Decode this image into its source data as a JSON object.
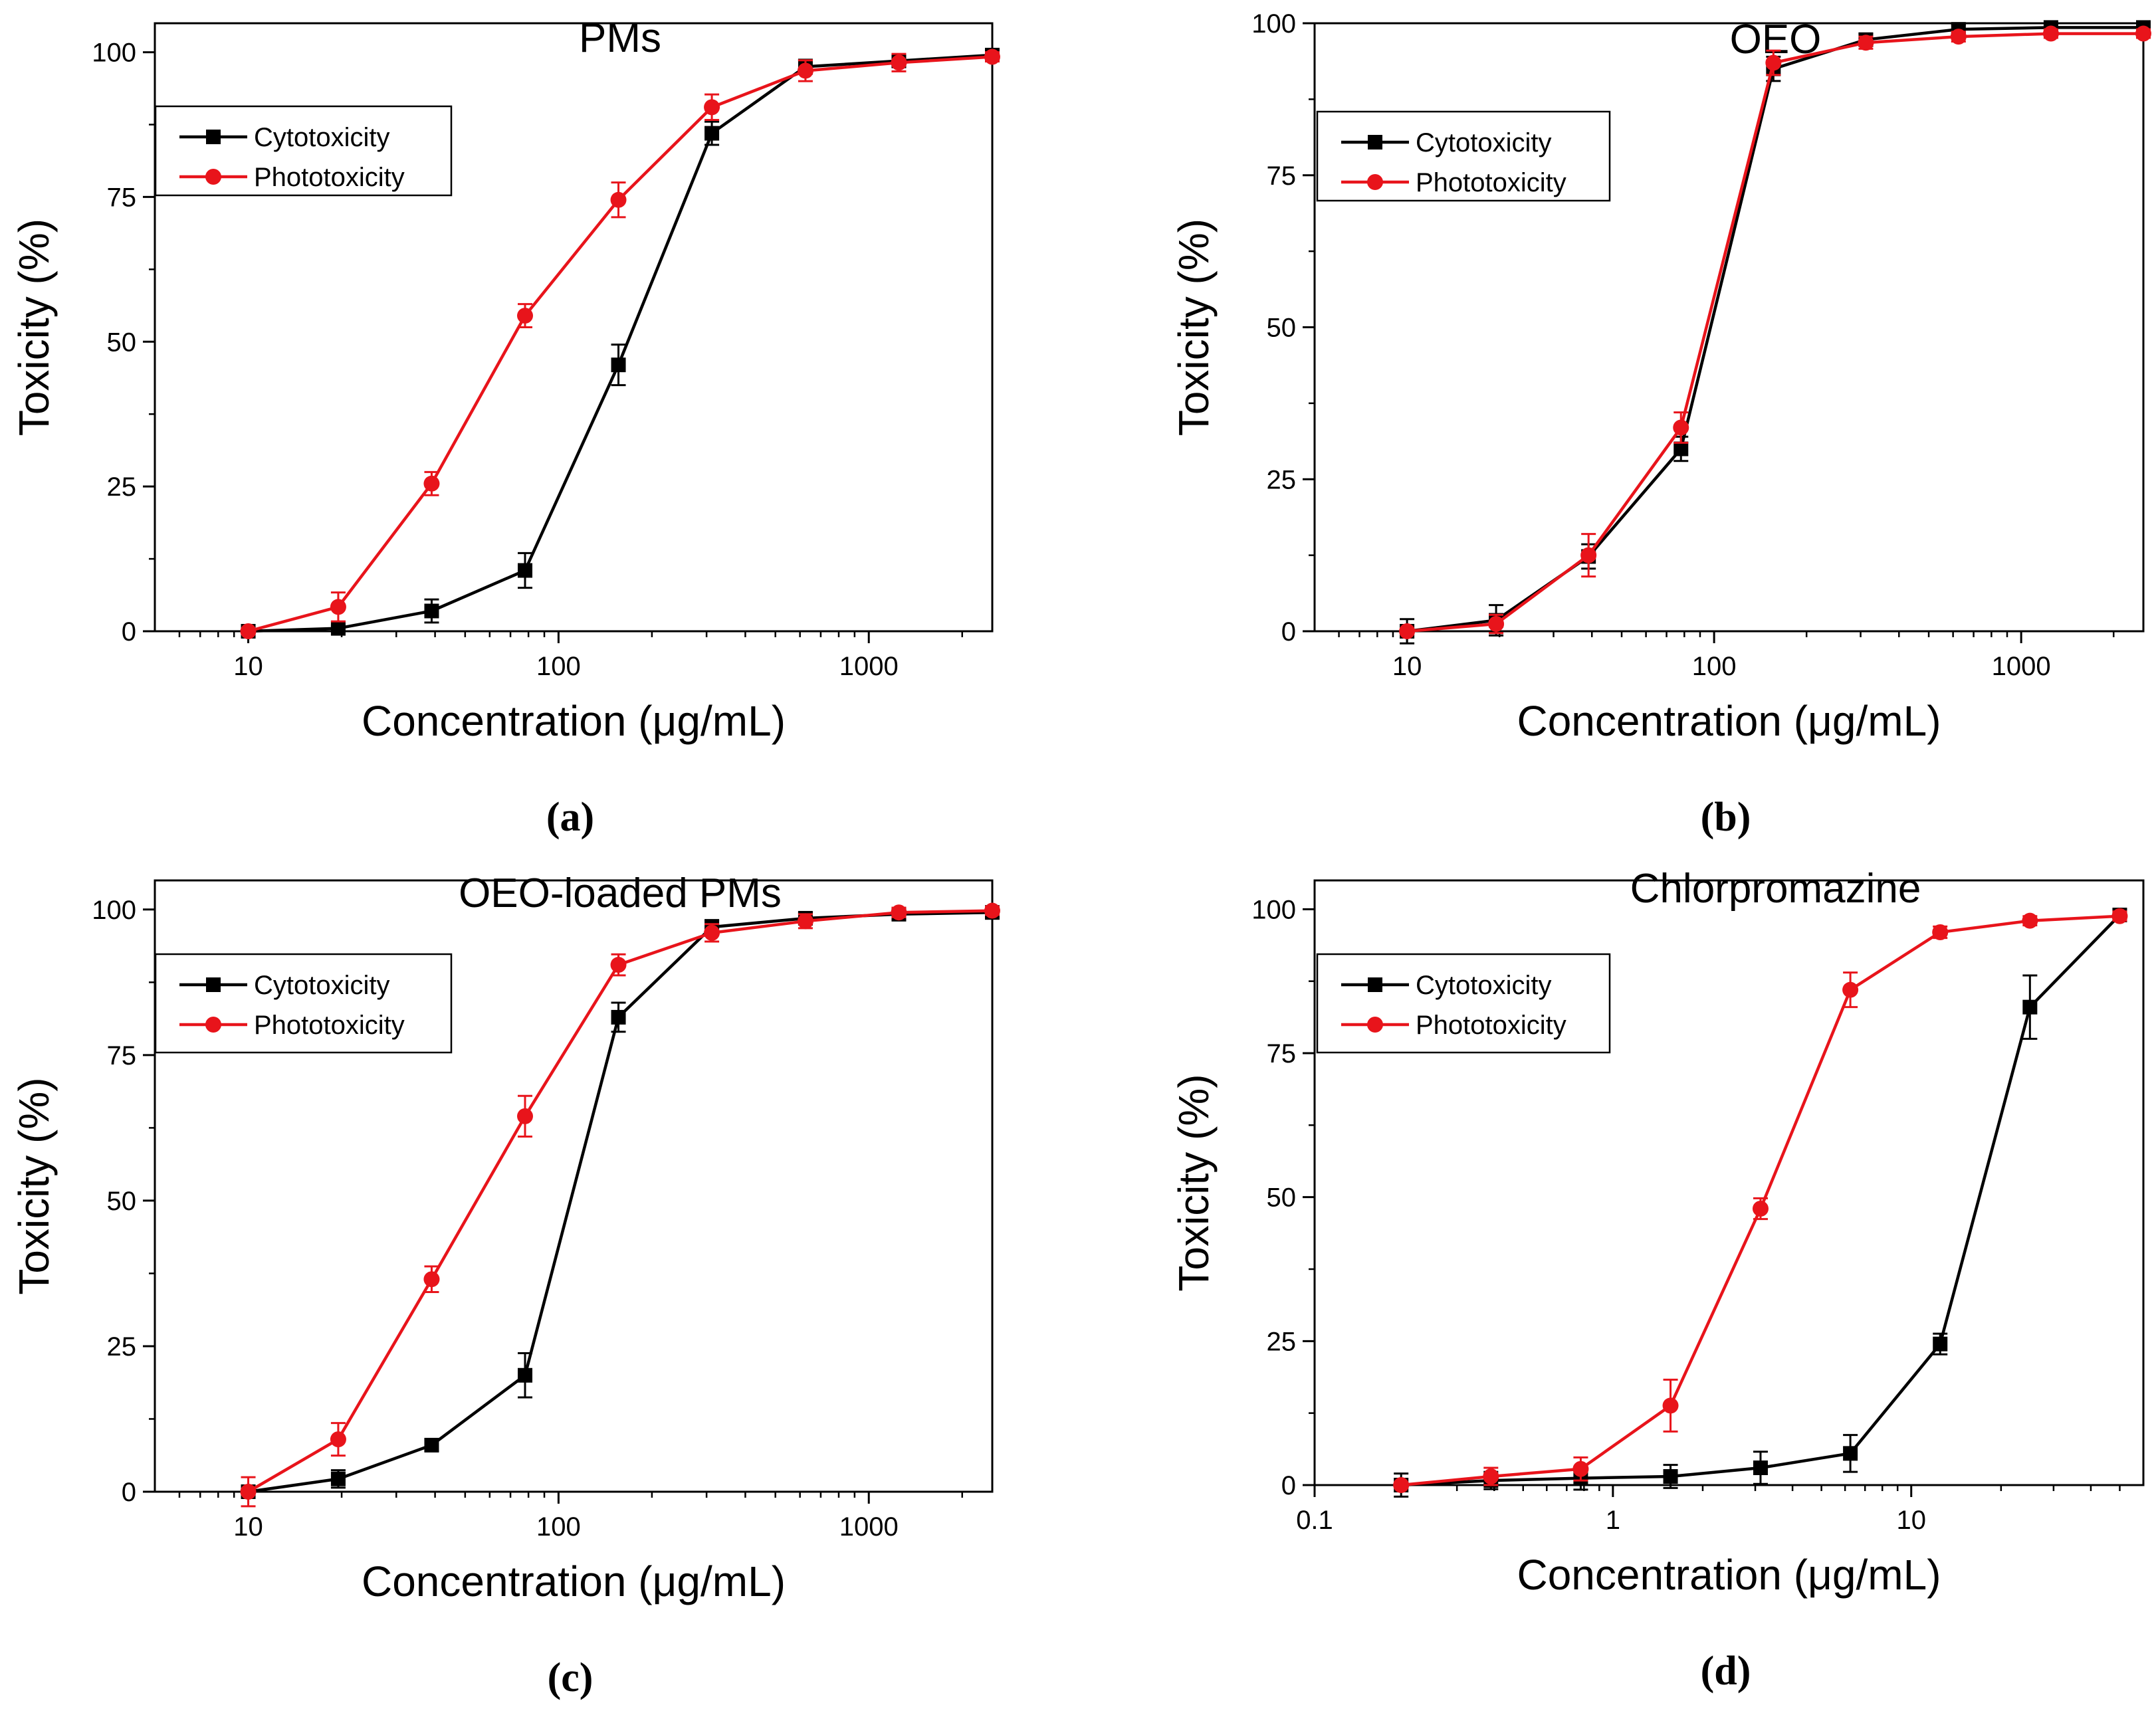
{
  "colors": {
    "cytotoxicity": "#000000",
    "phototoxicity": "#e8141b",
    "axis": "#000000",
    "background": "#ffffff"
  },
  "chart_data": [
    {
      "type": "line",
      "panel_label": "(a)",
      "title": "PMs",
      "xlabel": "Concentration (μg/mL)",
      "ylabel": "Toxicity (%)",
      "xscale": "log",
      "xlim": [
        5,
        2500
      ],
      "ylim": [
        0,
        105
      ],
      "xticks": [
        10,
        100,
        1000
      ],
      "xtick_labels": [
        "10",
        "100",
        "1000"
      ],
      "yticks": [
        0,
        25,
        50,
        75,
        100
      ],
      "ytick_labels": [
        "0",
        "25",
        "50",
        "75",
        "100"
      ],
      "legend": {
        "position": "upper-left",
        "entries": [
          "Cytotoxicity",
          "Phototoxicity"
        ]
      },
      "x": [
        10,
        19.5,
        39,
        78,
        156,
        312,
        625,
        1250,
        2500
      ],
      "series": [
        {
          "name": "Cytotoxicity",
          "marker": "square",
          "values": [
            0,
            0.5,
            3.5,
            10.5,
            46,
            86,
            97.5,
            98.5,
            99.5
          ],
          "errors": [
            0,
            0.5,
            2,
            3,
            3.5,
            2,
            1.2,
            1,
            0.8
          ]
        },
        {
          "name": "Phototoxicity",
          "marker": "circle",
          "values": [
            0,
            4.2,
            25.5,
            54.5,
            74.5,
            90.5,
            96.8,
            98.2,
            99.2
          ],
          "errors": [
            0,
            2.5,
            2,
            2,
            3,
            2.2,
            1.8,
            1.5,
            0.8
          ]
        }
      ]
    },
    {
      "type": "line",
      "panel_label": "(b)",
      "title": "OEO",
      "xlabel": "Concentration (μg/mL)",
      "ylabel": "Toxicity (%)",
      "xscale": "log",
      "xlim": [
        5,
        2500
      ],
      "ylim": [
        0,
        100
      ],
      "xticks": [
        10,
        100,
        1000
      ],
      "xtick_labels": [
        "10",
        "100",
        "1000"
      ],
      "yticks": [
        0,
        25,
        50,
        75,
        100
      ],
      "ytick_labels": [
        "0",
        "25",
        "50",
        "75",
        "100"
      ],
      "legend": {
        "position": "upper-left",
        "entries": [
          "Cytotoxicity",
          "Phototoxicity"
        ]
      },
      "x": [
        10,
        19.5,
        39,
        78,
        156,
        312,
        625,
        1250,
        2500
      ],
      "series": [
        {
          "name": "Cytotoxicity",
          "marker": "square",
          "values": [
            0,
            1.8,
            12.3,
            30,
            92.5,
            97.3,
            99,
            99.3,
            99.3
          ],
          "errors": [
            2,
            2.5,
            2,
            2,
            2,
            1,
            0.8,
            0.7,
            0.7
          ]
        },
        {
          "name": "Phototoxicity",
          "marker": "circle",
          "values": [
            0,
            1.2,
            12.5,
            33.5,
            93.5,
            96.8,
            97.8,
            98.3,
            98.3
          ],
          "errors": [
            0,
            1.5,
            3.5,
            2.5,
            2,
            1,
            0.8,
            0.7,
            0.7
          ]
        }
      ]
    },
    {
      "type": "line",
      "panel_label": "(c)",
      "title": "OEO-loaded PMs",
      "xlabel": "Concentration (μg/mL)",
      "ylabel": "Toxicity (%)",
      "xscale": "log",
      "xlim": [
        5,
        2500
      ],
      "ylim": [
        0,
        105
      ],
      "xticks": [
        10,
        100,
        1000
      ],
      "xtick_labels": [
        "10",
        "100",
        "1000"
      ],
      "yticks": [
        0,
        25,
        50,
        75,
        100
      ],
      "ytick_labels": [
        "0",
        "25",
        "50",
        "75",
        "100"
      ],
      "legend": {
        "position": "upper-left",
        "entries": [
          "Cytotoxicity",
          "Phototoxicity"
        ]
      },
      "x": [
        10,
        19.5,
        39,
        78,
        156,
        312,
        625,
        1250,
        2500
      ],
      "series": [
        {
          "name": "Cytotoxicity",
          "marker": "square",
          "values": [
            0,
            2.2,
            8,
            20,
            81.5,
            97,
            98.5,
            99.2,
            99.5
          ],
          "errors": [
            0,
            1.5,
            1,
            3.8,
            2.5,
            1.2,
            1,
            0.8,
            0.7
          ]
        },
        {
          "name": "Phototoxicity",
          "marker": "circle",
          "values": [
            0,
            9,
            36.5,
            64.5,
            90.5,
            96,
            98,
            99.5,
            99.8
          ],
          "errors": [
            2.5,
            2.8,
            2.2,
            3.5,
            1.8,
            1.5,
            1.2,
            0.8,
            0.7
          ]
        }
      ]
    },
    {
      "type": "line",
      "panel_label": "(d)",
      "title": "Chlorpromazine",
      "xlabel": "Concentration (μg/mL)",
      "ylabel": "Toxicity (%)",
      "xscale": "log",
      "xlim": [
        0.1,
        60
      ],
      "ylim": [
        0,
        105
      ],
      "xticks": [
        0.1,
        1,
        10
      ],
      "xtick_labels": [
        "0.1",
        "1",
        "10"
      ],
      "yticks": [
        0,
        25,
        50,
        75,
        100
      ],
      "ytick_labels": [
        "0",
        "25",
        "50",
        "75",
        "100"
      ],
      "legend": {
        "position": "upper-left",
        "entries": [
          "Cytotoxicity",
          "Phototoxicity"
        ]
      },
      "x": [
        0.195,
        0.39,
        0.78,
        1.56,
        3.125,
        6.25,
        12.5,
        25,
        50
      ],
      "series": [
        {
          "name": "Cytotoxicity",
          "marker": "square",
          "values": [
            0,
            0.8,
            1.2,
            1.5,
            3,
            5.5,
            24.5,
            83,
            99
          ],
          "errors": [
            2,
            1.5,
            2,
            2,
            2.8,
            3.2,
            1.8,
            5.5,
            0.8
          ]
        },
        {
          "name": "Phototoxicity",
          "marker": "circle",
          "values": [
            0,
            1.5,
            2.8,
            13.8,
            48,
            86,
            96,
            98,
            98.8
          ],
          "errors": [
            0,
            1.5,
            2,
            4.5,
            1.8,
            3,
            1,
            0.8,
            0.8
          ]
        }
      ]
    }
  ]
}
